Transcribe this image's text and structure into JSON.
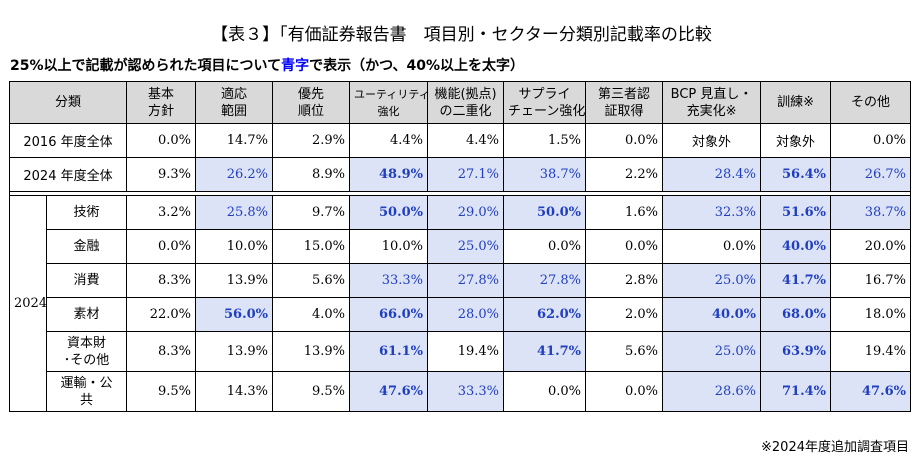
{
  "title": "【表３】「有価証券報告書　項目別・セクター分類別記載率の比較",
  "subtitle": {
    "part1": "25%以上で記載が認められた項目について",
    "part2": "青字",
    "part3": "で表示（かつ、40%以上を太字）"
  },
  "headers": {
    "category": "分類",
    "cols": [
      [
        "基本",
        "方針"
      ],
      [
        "適応",
        "範囲"
      ],
      [
        "優先",
        "順位"
      ],
      [
        "ユーティリティ",
        "強化"
      ],
      [
        "機能(拠点)",
        "の二重化"
      ],
      [
        "サプライ",
        "チェーン強化"
      ],
      [
        "第三者認",
        "証取得"
      ],
      [
        "BCP 見直し・",
        "充実化※"
      ],
      [
        "訓練※",
        ""
      ],
      [
        "その他",
        ""
      ]
    ]
  },
  "rows": [
    {
      "label": "2016 年度全体",
      "cells": [
        {
          "v": "0.0%"
        },
        {
          "v": "14.7%"
        },
        {
          "v": "2.9%"
        },
        {
          "v": "4.4%"
        },
        {
          "v": "4.4%"
        },
        {
          "v": "1.5%"
        },
        {
          "v": "0.0%"
        },
        {
          "v": "対象外",
          "c": true
        },
        {
          "v": "対象外",
          "c": true
        },
        {
          "v": "0.0%"
        }
      ]
    },
    {
      "label": "2024 年度全体",
      "cells": [
        {
          "v": "9.3%"
        },
        {
          "v": "26.2%",
          "h": true
        },
        {
          "v": "8.9%"
        },
        {
          "v": "48.9%",
          "h": true,
          "b": true
        },
        {
          "v": "27.1%",
          "h": true
        },
        {
          "v": "38.7%",
          "h": true
        },
        {
          "v": "2.2%"
        },
        {
          "v": "28.4%",
          "h": true
        },
        {
          "v": "56.4%",
          "h": true,
          "b": true
        },
        {
          "v": "26.7%",
          "h": true
        }
      ]
    }
  ],
  "group_label": "2024",
  "sector_rows": [
    {
      "label": "技術",
      "cells": [
        {
          "v": "3.2%"
        },
        {
          "v": "25.8%",
          "h": true
        },
        {
          "v": "9.7%"
        },
        {
          "v": "50.0%",
          "h": true,
          "b": true
        },
        {
          "v": "29.0%",
          "h": true
        },
        {
          "v": "50.0%",
          "h": true,
          "b": true
        },
        {
          "v": "1.6%"
        },
        {
          "v": "32.3%",
          "h": true
        },
        {
          "v": "51.6%",
          "h": true,
          "b": true
        },
        {
          "v": "38.7%",
          "h": true
        }
      ]
    },
    {
      "label": "金融",
      "cells": [
        {
          "v": "0.0%"
        },
        {
          "v": "10.0%"
        },
        {
          "v": "15.0%"
        },
        {
          "v": "10.0%"
        },
        {
          "v": "25.0%",
          "h": true
        },
        {
          "v": "0.0%"
        },
        {
          "v": "0.0%"
        },
        {
          "v": "0.0%"
        },
        {
          "v": "40.0%",
          "h": true,
          "b": true
        },
        {
          "v": "20.0%"
        }
      ]
    },
    {
      "label": "消費",
      "cells": [
        {
          "v": "8.3%"
        },
        {
          "v": "13.9%"
        },
        {
          "v": "5.6%"
        },
        {
          "v": "33.3%",
          "h": true
        },
        {
          "v": "27.8%",
          "h": true
        },
        {
          "v": "27.8%",
          "h": true
        },
        {
          "v": "2.8%"
        },
        {
          "v": "25.0%",
          "h": true
        },
        {
          "v": "41.7%",
          "h": true,
          "b": true
        },
        {
          "v": "16.7%"
        }
      ]
    },
    {
      "label": "素材",
      "cells": [
        {
          "v": "22.0%"
        },
        {
          "v": "56.0%",
          "h": true,
          "b": true
        },
        {
          "v": "4.0%"
        },
        {
          "v": "66.0%",
          "h": true,
          "b": true
        },
        {
          "v": "28.0%",
          "h": true
        },
        {
          "v": "62.0%",
          "h": true,
          "b": true
        },
        {
          "v": "2.0%"
        },
        {
          "v": "40.0%",
          "h": true,
          "b": true
        },
        {
          "v": "68.0%",
          "h": true,
          "b": true
        },
        {
          "v": "18.0%"
        }
      ]
    },
    {
      "label": "資本財\n･その他",
      "cells": [
        {
          "v": "8.3%"
        },
        {
          "v": "13.9%"
        },
        {
          "v": "13.9%"
        },
        {
          "v": "61.1%",
          "h": true,
          "b": true
        },
        {
          "v": "19.4%"
        },
        {
          "v": "41.7%",
          "h": true,
          "b": true
        },
        {
          "v": "5.6%"
        },
        {
          "v": "25.0%",
          "h": true
        },
        {
          "v": "63.9%",
          "h": true,
          "b": true
        },
        {
          "v": "19.4%"
        }
      ]
    },
    {
      "label": "運輸・公\n共",
      "cells": [
        {
          "v": "9.5%"
        },
        {
          "v": "14.3%"
        },
        {
          "v": "9.5%"
        },
        {
          "v": "47.6%",
          "h": true,
          "b": true
        },
        {
          "v": "33.3%",
          "h": true
        },
        {
          "v": "0.0%"
        },
        {
          "v": "0.0%"
        },
        {
          "v": "28.6%",
          "h": true
        },
        {
          "v": "71.4%",
          "h": true,
          "b": true
        },
        {
          "v": "47.6%",
          "h": true,
          "b": true
        }
      ]
    }
  ],
  "footnote": "※2024年度追加調査項目",
  "colors": {
    "header_bg": "#d9d9d9",
    "highlight_bg": "#dde3f7",
    "highlight_text": "#1f3fbf"
  }
}
